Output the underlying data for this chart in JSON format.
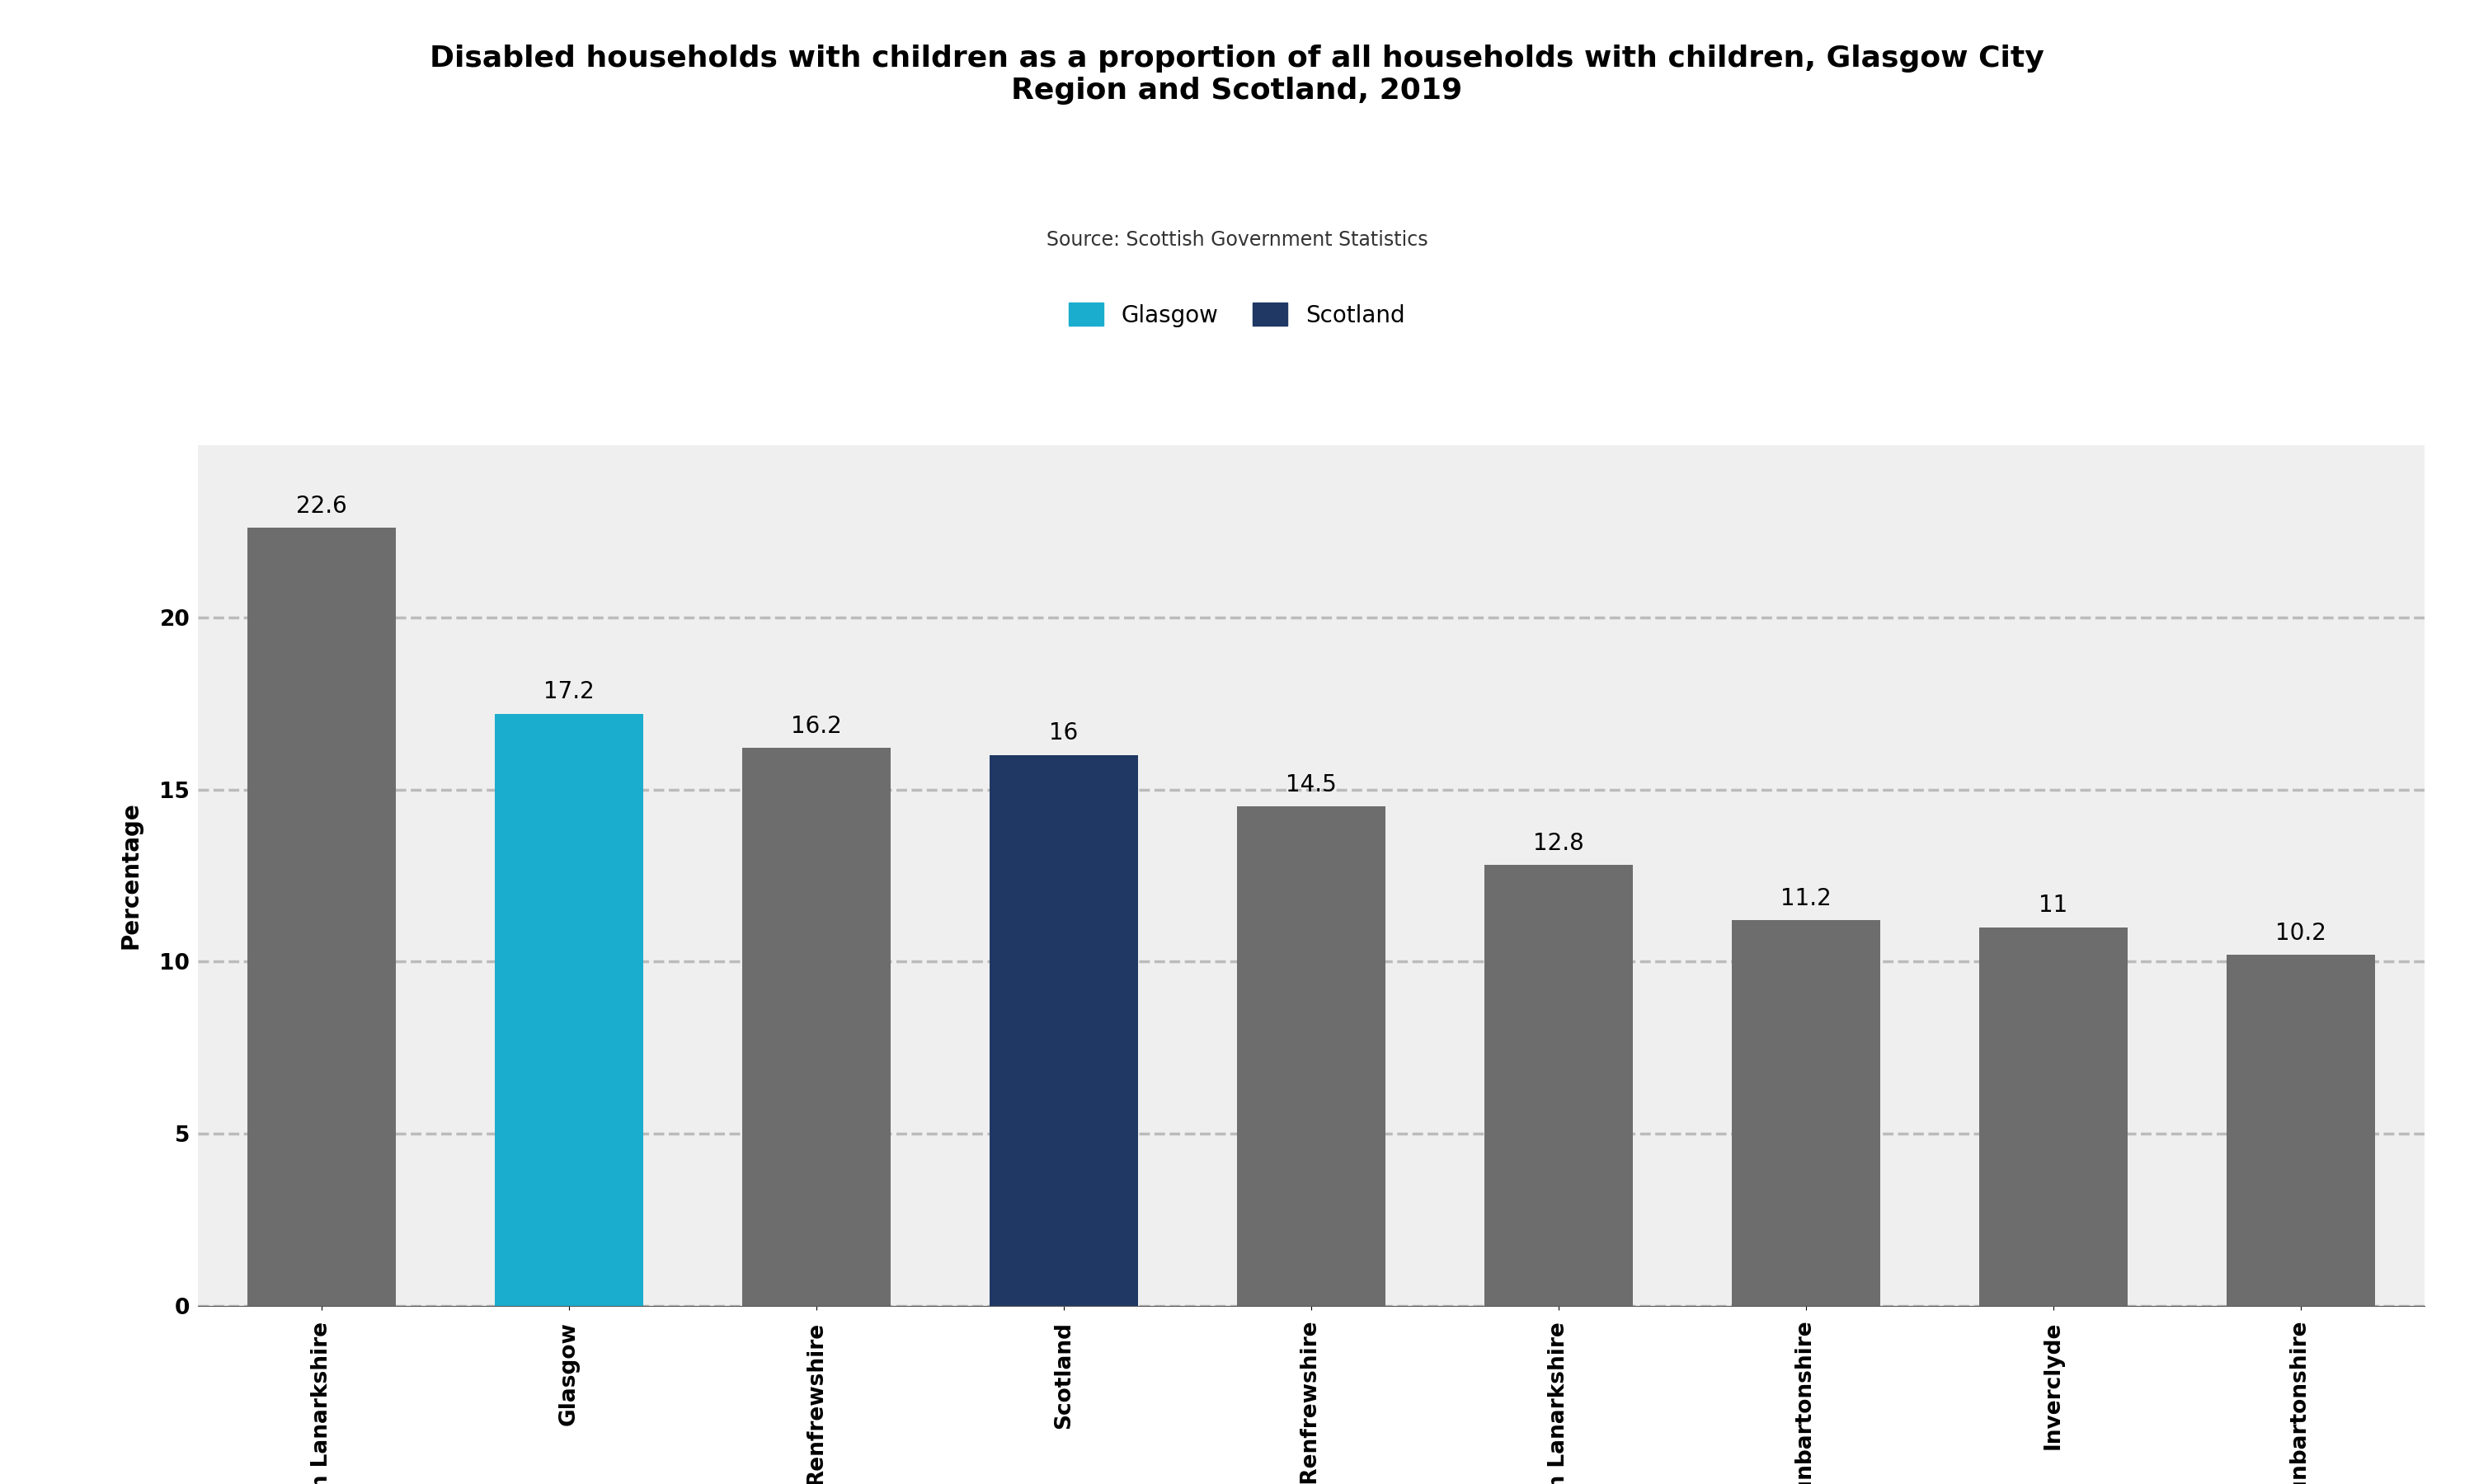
{
  "title": "Disabled households with children as a proportion of all households with children, Glasgow City\nRegion and Scotland, 2019",
  "source": "Source: Scottish Government Statistics",
  "ylabel": "Percentage",
  "categories": [
    "North Lanarkshire",
    "Glasgow",
    "Renfrewshire",
    "Scotland",
    "East Renfrewshire",
    "South Lanarkshire",
    "West Dunbartonshire",
    "Inverclyde",
    "East Dunbartonshire"
  ],
  "values": [
    22.6,
    17.2,
    16.2,
    16.0,
    14.5,
    12.8,
    11.2,
    11.0,
    10.2
  ],
  "bar_colors": [
    "#6d6d6d",
    "#1aadce",
    "#6d6d6d",
    "#1f3864",
    "#6d6d6d",
    "#6d6d6d",
    "#6d6d6d",
    "#6d6d6d",
    "#6d6d6d"
  ],
  "glasgow_color": "#1aadce",
  "scotland_color": "#1f3864",
  "ylim": [
    0,
    25
  ],
  "yticks": [
    0,
    5,
    10,
    15,
    20
  ],
  "grid_color": "#bbbbbb",
  "bg_color": "#efefef",
  "legend_labels": [
    "Glasgow",
    "Scotland"
  ],
  "legend_colors": [
    "#1aadce",
    "#1f3864"
  ],
  "title_fontsize": 26,
  "label_fontsize": 20,
  "tick_fontsize": 19,
  "source_fontsize": 17,
  "value_fontsize": 20
}
